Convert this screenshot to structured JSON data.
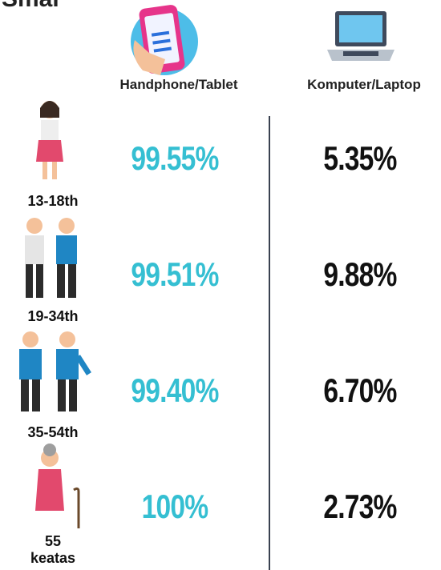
{
  "header": {
    "title": "Smar"
  },
  "columns": [
    "Handphone/Tablet",
    "Komputer/Laptop"
  ],
  "rows": [
    {
      "age": [
        "13-18th"
      ],
      "values": [
        "99.55%",
        "5.35%"
      ]
    },
    {
      "age": [
        "19-34th"
      ],
      "values": [
        "99.51%",
        "9.88%"
      ]
    },
    {
      "age": [
        "35-54th"
      ],
      "values": [
        "99.40%",
        "6.70%"
      ]
    },
    {
      "age": [
        "55",
        "keatas"
      ],
      "values": [
        "100%",
        "2.73%"
      ]
    }
  ]
}
